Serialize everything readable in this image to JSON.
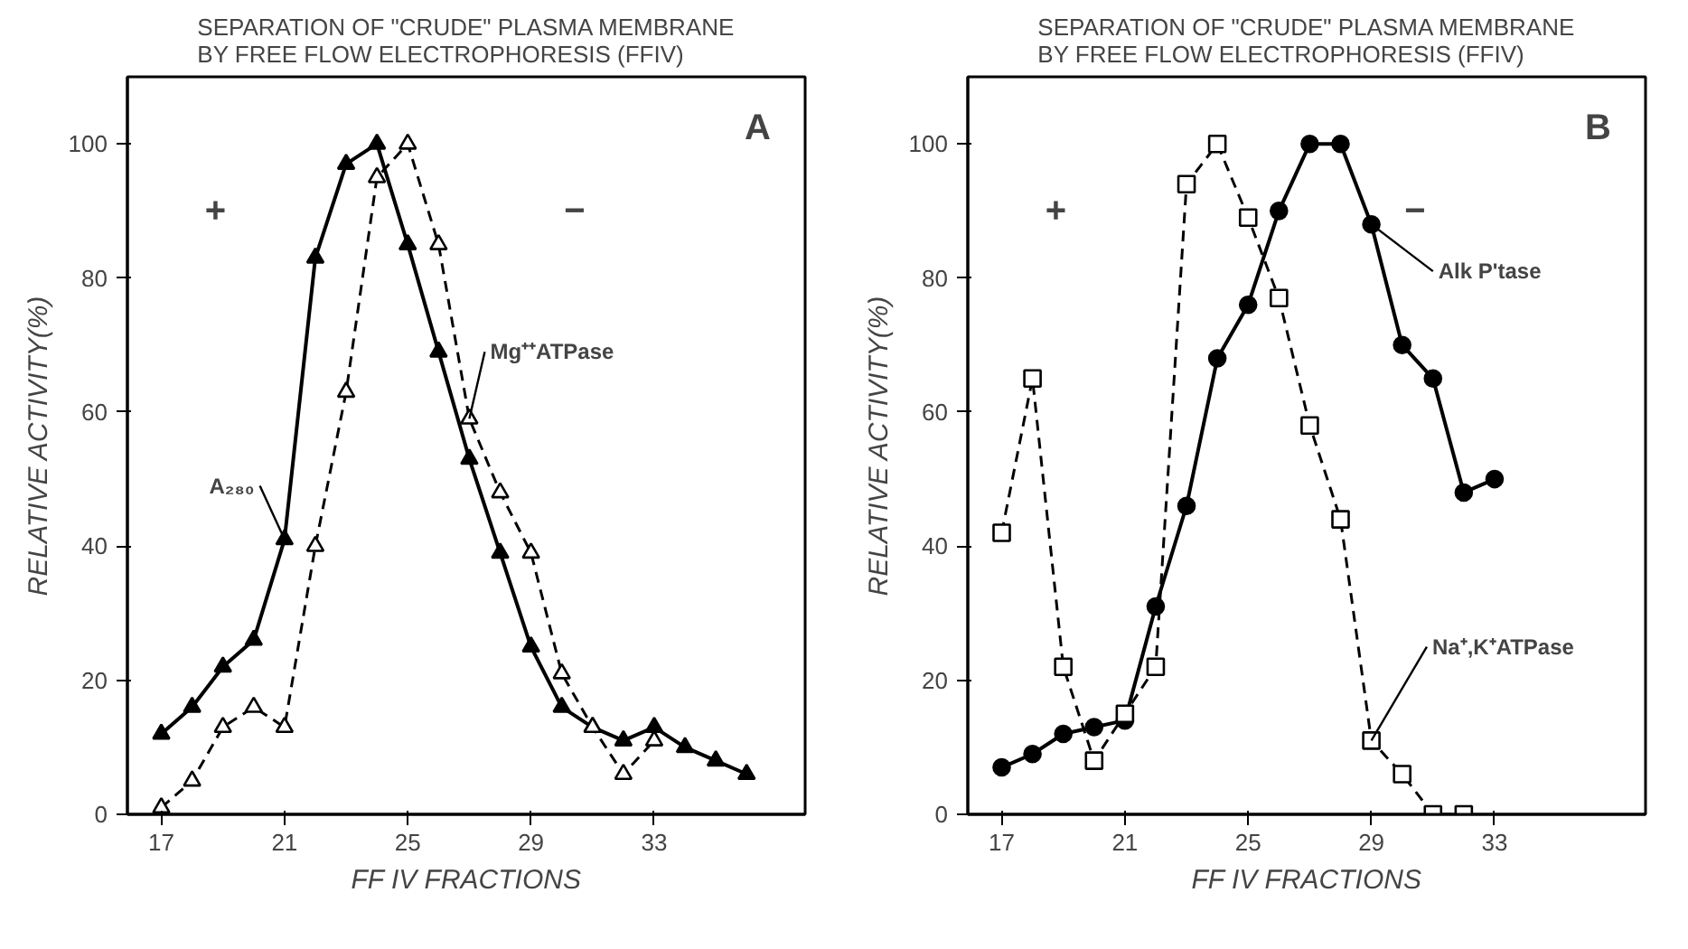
{
  "chart_data": [
    {
      "type": "line",
      "title": "SEPARATION OF \"CRUDE\" PLASMA MEMBRANE\nBY FREE FLOW ELECTROPHORESIS (FFIV)",
      "xlabel": "FF IV FRACTIONS",
      "ylabel": "RELATIVE ACTIVITY(%)",
      "series": [
        {
          "color": "#000000",
          "marker": "triangle",
          "line_style": "solid",
          "x": [
            17,
            18,
            19,
            20,
            21,
            22,
            23,
            24,
            25,
            26,
            27,
            28,
            29,
            30,
            31,
            32,
            33,
            34,
            35,
            36
          ],
          "values": [
            12,
            16,
            22,
            26,
            41,
            83,
            97,
            100,
            85,
            69,
            53,
            39,
            25,
            16,
            13,
            11,
            13,
            10,
            8,
            6
          ]
        },
        {
          "color": "#000000",
          "marker": "triangle",
          "line_style": "dashed",
          "x": [
            17,
            18,
            19,
            20,
            21,
            22,
            23,
            24,
            25,
            26,
            27,
            28,
            29,
            30,
            31,
            32,
            33
          ],
          "values": [
            1,
            5,
            13,
            16,
            13,
            40,
            63,
            95,
            100,
            85,
            59,
            48,
            39,
            21,
            13,
            6,
            11
          ]
        }
      ],
      "annotations": [
        "+",
        "−",
        "A",
        {
          "text": "A₂₈₀",
          "x": 21,
          "y": 41
        },
        {
          "text": "Mg⁺⁺ATPase",
          "x": 27,
          "y": 59
        }
      ],
      "xlim": [
        15.9,
        37.9
      ],
      "ylim": [
        0,
        110
      ],
      "xticks": [
        17,
        21,
        25,
        29,
        33
      ],
      "yticks": [
        0,
        20,
        40,
        60,
        80,
        100
      ],
      "grid": false
    },
    {
      "type": "line",
      "title": "SEPARATION OF \"CRUDE\" PLASMA MEMBRANE\nBY FREE FLOW ELECTROPHORESIS (FFIV)",
      "xlabel": "FF IV FRACTIONS",
      "ylabel": "RELATIVE ACTIVITY(%)",
      "series": [
        {
          "color": "#000000",
          "marker": "circle",
          "line_style": "solid",
          "x": [
            17,
            18,
            19,
            20,
            21,
            22,
            23,
            24,
            25,
            26,
            27,
            28,
            29,
            30,
            31,
            32,
            33
          ],
          "values": [
            7,
            9,
            12,
            13,
            14,
            31,
            46,
            68,
            76,
            90,
            100,
            100,
            88,
            70,
            65,
            48,
            50
          ]
        },
        {
          "color": "#000000",
          "marker": "square",
          "line_style": "dashed",
          "x": [
            17,
            18,
            19,
            20,
            21,
            22,
            23,
            24,
            25,
            26,
            27,
            28,
            29,
            30,
            31,
            32
          ],
          "values": [
            42,
            65,
            22,
            8,
            15,
            22,
            94,
            100,
            89,
            77,
            58,
            44,
            11,
            6,
            0,
            0
          ]
        }
      ],
      "annotations": [
        "+",
        "−",
        "B",
        {
          "text": "Alk P'tase",
          "x": 29,
          "y": 88
        },
        {
          "text": "Na⁺,K⁺ATPase",
          "x": 29,
          "y": 11
        }
      ],
      "xlim": [
        15.9,
        37.9
      ],
      "ylim": [
        0,
        110
      ],
      "xticks": [
        17,
        21,
        25,
        29,
        33
      ],
      "yticks": [
        0,
        20,
        40,
        60,
        80,
        100
      ],
      "grid": false
    }
  ]
}
